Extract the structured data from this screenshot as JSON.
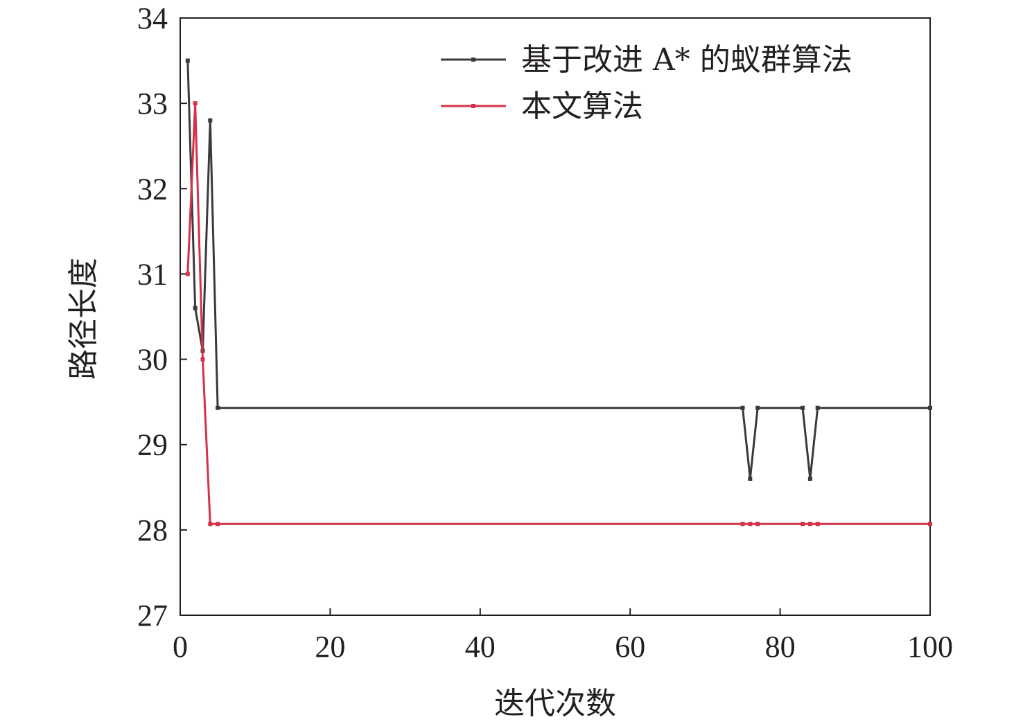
{
  "chart_data": {
    "type": "line",
    "title": "",
    "xlabel": "迭代次数",
    "ylabel": "路径长度",
    "xlim": [
      0,
      100
    ],
    "ylim": [
      27,
      34
    ],
    "xticks": [
      "0",
      "20",
      "40",
      "60",
      "80",
      "100"
    ],
    "yticks": [
      "27",
      "28",
      "29",
      "30",
      "31",
      "32",
      "33",
      "34"
    ],
    "grid": false,
    "legend_position": "top-right",
    "series": [
      {
        "name": "基于改进 A* 的蚁群算法",
        "color": "#3a3a3a",
        "x": [
          1,
          2,
          3,
          4,
          5,
          75,
          76,
          77,
          83,
          84,
          85,
          100
        ],
        "y": [
          33.5,
          30.6,
          30.1,
          32.8,
          29.43,
          29.43,
          28.6,
          29.43,
          29.43,
          28.6,
          29.43,
          29.43
        ]
      },
      {
        "name": "本文算法",
        "color": "#d3324a",
        "x": [
          1,
          2,
          3,
          4,
          5,
          75,
          76,
          77,
          83,
          84,
          85,
          100
        ],
        "y": [
          31.0,
          33.0,
          30.0,
          28.07,
          28.07,
          28.07,
          28.07,
          28.07,
          28.07,
          28.07,
          28.07,
          28.07
        ]
      }
    ]
  }
}
